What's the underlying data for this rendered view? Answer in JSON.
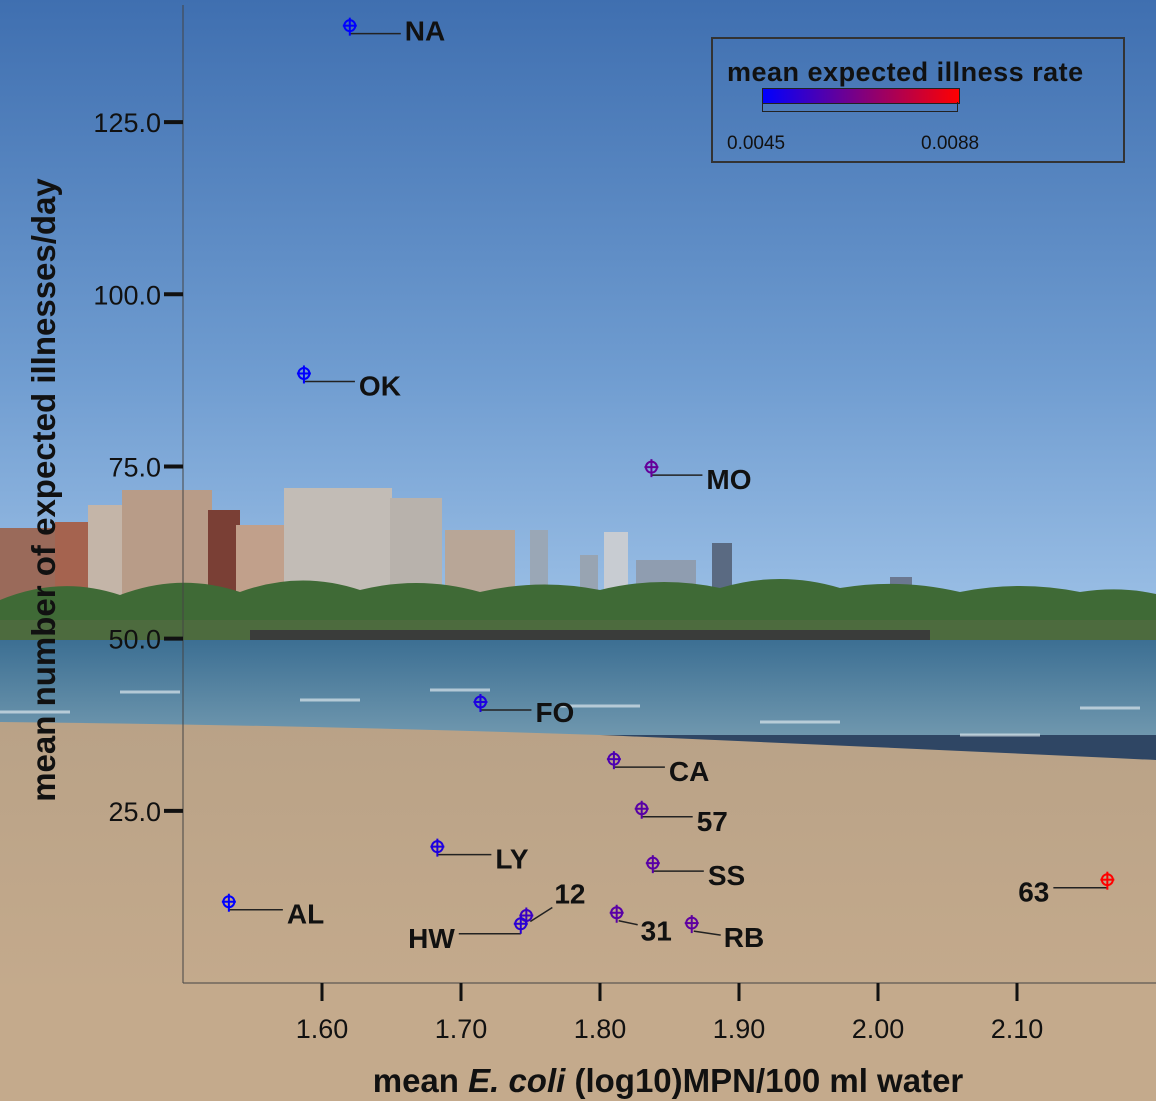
{
  "chart_data": {
    "type": "scatter",
    "title": "",
    "xlabel_prefix": "mean ",
    "xlabel_italic": "E. coli",
    "xlabel_suffix": " (log10)MPN/100 ml water",
    "ylabel": "mean number of expected illnesses/day",
    "xlim": [
      1.5,
      2.2
    ],
    "ylim": [
      0,
      142
    ],
    "x_ticks": [
      1.6,
      1.7,
      1.8,
      1.9,
      2.0,
      2.1
    ],
    "x_tick_labels": [
      "1.60",
      "1.70",
      "1.80",
      "1.90",
      "2.00",
      "2.10"
    ],
    "y_ticks": [
      25,
      50,
      75,
      100,
      125
    ],
    "y_tick_labels": [
      "25.0",
      "50.0",
      "75.0",
      "100.0",
      "125.0"
    ],
    "grid": false,
    "legend": {
      "title": "mean expected illness rate",
      "min_label": "0.0045",
      "max_label": "0.0088",
      "min_color": "#0000ff",
      "max_color": "#ff0000",
      "min": 0.0045,
      "max": 0.0088,
      "placement": "top-right"
    },
    "points": [
      {
        "label": "NA",
        "x": 1.62,
        "y": 139.0,
        "rate": 0.0045
      },
      {
        "label": "OK",
        "x": 1.587,
        "y": 88.5,
        "rate": 0.0045
      },
      {
        "label": "MO",
        "x": 1.837,
        "y": 74.9,
        "rate": 0.0062
      },
      {
        "label": "FO",
        "x": 1.714,
        "y": 40.8,
        "rate": 0.005
      },
      {
        "label": "CA",
        "x": 1.81,
        "y": 32.5,
        "rate": 0.0058
      },
      {
        "label": "57",
        "x": 1.83,
        "y": 25.3,
        "rate": 0.006
      },
      {
        "label": "LY",
        "x": 1.683,
        "y": 19.8,
        "rate": 0.005
      },
      {
        "label": "SS",
        "x": 1.838,
        "y": 17.4,
        "rate": 0.006
      },
      {
        "label": "63",
        "x": 2.165,
        "y": 15.0,
        "rate": 0.0088
      },
      {
        "label": "AL",
        "x": 1.533,
        "y": 11.8,
        "rate": 0.0045
      },
      {
        "label": "12",
        "x": 1.747,
        "y": 9.8,
        "rate": 0.0055
      },
      {
        "label": "HW",
        "x": 1.743,
        "y": 8.6,
        "rate": 0.0052
      },
      {
        "label": "31",
        "x": 1.812,
        "y": 10.2,
        "rate": 0.006
      },
      {
        "label": "RB",
        "x": 1.866,
        "y": 8.7,
        "rate": 0.0061
      }
    ]
  }
}
